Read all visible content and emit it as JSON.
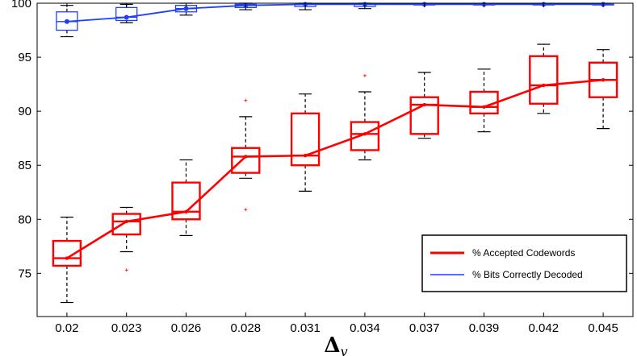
{
  "chart_data": {
    "type": "box",
    "xlabel": "Δ",
    "xlabel_subscript": "v",
    "ylim": [
      71,
      100
    ],
    "yticks": [
      75,
      80,
      85,
      90,
      95,
      100
    ],
    "grid": false,
    "legend_position": "bottom-right",
    "categories": [
      "0.02",
      "0.023",
      "0.026",
      "0.028",
      "0.031",
      "0.034",
      "0.037",
      "0.039",
      "0.042",
      "0.045"
    ],
    "series": [
      {
        "name": "% Accepted Codewords",
        "color": "#ff0000",
        "median_line": [
          76.4,
          79.8,
          80.7,
          85.8,
          85.9,
          87.9,
          90.6,
          90.4,
          92.4,
          92.9
        ],
        "boxes": [
          {
            "whisker_low": 72.3,
            "q1": 75.7,
            "median": 76.4,
            "q3": 78.0,
            "whisker_high": 80.2,
            "outliers": []
          },
          {
            "whisker_low": 77.0,
            "q1": 78.6,
            "median": 79.8,
            "q3": 80.5,
            "whisker_high": 81.1,
            "outliers": [
              75.3
            ]
          },
          {
            "whisker_low": 78.5,
            "q1": 80.0,
            "median": 80.7,
            "q3": 83.4,
            "whisker_high": 85.5,
            "outliers": []
          },
          {
            "whisker_low": 83.8,
            "q1": 84.3,
            "median": 85.8,
            "q3": 86.6,
            "whisker_high": 89.5,
            "outliers": [
              91.0,
              80.9
            ]
          },
          {
            "whisker_low": 82.6,
            "q1": 85.0,
            "median": 85.9,
            "q3": 89.8,
            "whisker_high": 91.6,
            "outliers": []
          },
          {
            "whisker_low": 85.5,
            "q1": 86.4,
            "median": 87.9,
            "q3": 89.0,
            "whisker_high": 91.8,
            "outliers": [
              93.3
            ]
          },
          {
            "whisker_low": 87.5,
            "q1": 87.9,
            "median": 90.6,
            "q3": 91.3,
            "whisker_high": 93.6,
            "outliers": []
          },
          {
            "whisker_low": 88.1,
            "q1": 89.8,
            "median": 90.4,
            "q3": 91.8,
            "whisker_high": 93.9,
            "outliers": []
          },
          {
            "whisker_low": 89.8,
            "q1": 90.7,
            "median": 92.4,
            "q3": 95.1,
            "whisker_high": 96.2,
            "outliers": []
          },
          {
            "whisker_low": 88.4,
            "q1": 91.3,
            "median": 92.9,
            "q3": 94.5,
            "whisker_high": 95.7,
            "outliers": []
          }
        ]
      },
      {
        "name": "% Bits Correctly Decoded",
        "color": "#1f3fff",
        "median_line": [
          98.3,
          98.7,
          99.5,
          99.8,
          99.9,
          99.9,
          99.9,
          99.9,
          99.9,
          99.9
        ],
        "boxes": [
          {
            "whisker_low": 96.9,
            "q1": 97.5,
            "median": 98.3,
            "q3": 99.2,
            "whisker_high": 99.8,
            "outliers": []
          },
          {
            "whisker_low": 98.2,
            "q1": 98.4,
            "median": 98.7,
            "q3": 99.6,
            "whisker_high": 99.9,
            "outliers": []
          },
          {
            "whisker_low": 98.9,
            "q1": 99.2,
            "median": 99.5,
            "q3": 99.8,
            "whisker_high": 100.0,
            "outliers": []
          },
          {
            "whisker_low": 99.4,
            "q1": 99.6,
            "median": 99.8,
            "q3": 99.9,
            "whisker_high": 100.0,
            "outliers": []
          },
          {
            "whisker_low": 99.4,
            "q1": 99.7,
            "median": 99.9,
            "q3": 99.9,
            "whisker_high": 100.0,
            "outliers": []
          },
          {
            "whisker_low": 99.5,
            "q1": 99.7,
            "median": 99.9,
            "q3": 99.95,
            "whisker_high": 100.0,
            "outliers": []
          },
          {
            "whisker_low": 99.9,
            "q1": 99.9,
            "median": 99.9,
            "q3": 99.9,
            "whisker_high": 99.9,
            "outliers": []
          },
          {
            "whisker_low": 99.9,
            "q1": 99.9,
            "median": 99.9,
            "q3": 99.9,
            "whisker_high": 99.9,
            "outliers": []
          },
          {
            "whisker_low": 99.9,
            "q1": 99.9,
            "median": 99.9,
            "q3": 99.9,
            "whisker_high": 99.9,
            "outliers": []
          },
          {
            "whisker_low": 99.9,
            "q1": 99.9,
            "median": 99.9,
            "q3": 99.9,
            "whisker_high": 99.9,
            "outliers": []
          }
        ]
      }
    ]
  }
}
